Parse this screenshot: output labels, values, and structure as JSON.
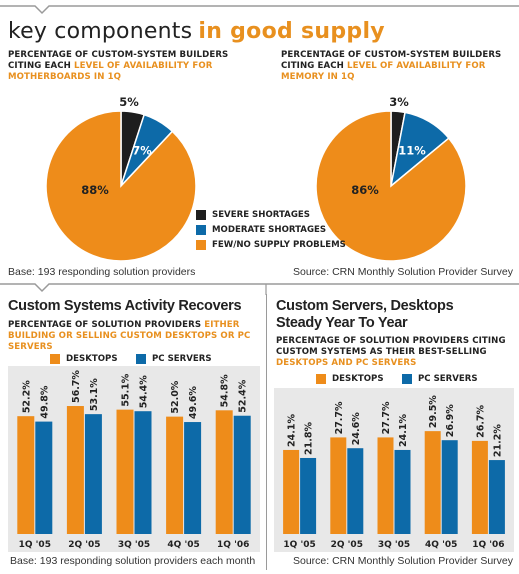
{
  "header": {
    "title_a": "key components",
    "title_b": "in good supply"
  },
  "top_left": {
    "subtitle_a": "PERCENTAGE OF CUSTOM-SYSTEM BUILDERS CITING EACH",
    "subtitle_b": "LEVEL OF AVAILABILITY FOR MOTHERBOARDS IN 1Q"
  },
  "top_right": {
    "subtitle_a": "PERCENTAGE OF CUSTOM-SYSTEM BUILDERS CITING EACH",
    "subtitle_b": "LEVEL OF AVAILABILITY FOR MEMORY IN 1Q"
  },
  "pie_legend": [
    "SEVERE SHORTAGES",
    "MODERATE SHORTAGES",
    "FEW/NO SUPPLY PROBLEMS"
  ],
  "top_base": "Base: 193 responding solution providers",
  "top_source": "Source: CRN Monthly Solution Provider Survey",
  "bottom_left": {
    "title": "Custom Systems Activity Recovers",
    "subtitle_a": "PERCENTAGE OF SOLUTION PROVIDERS",
    "subtitle_b": "EITHER BUILDING OR SELLING CUSTOM DESKTOPS OR PC SERVERS",
    "base": "Base: 193 responding solution providers each month"
  },
  "bottom_right": {
    "title_1": "Custom Servers, Desktops",
    "title_2": "Steady Year To Year",
    "subtitle_a": "PERCENTAGE OF SOLUTION PROVIDERS CITING CUSTOM SYSTEMS AS THEIR BEST-SELLING",
    "subtitle_b": "DESKTOPS AND PC SERVERS",
    "source": "Source: CRN Monthly Solution Provider Survey"
  },
  "bar_legend": [
    "DESKTOPS",
    "PC SERVERS"
  ],
  "colors": {
    "orange": "#ee8c1a",
    "blue": "#0d6aa8",
    "black": "#1e1e1e",
    "panel": "#e8e8e8"
  },
  "chart_data": [
    {
      "type": "pie",
      "categories": [
        "SEVERE SHORTAGES",
        "MODERATE SHORTAGES",
        "FEW/NO SUPPLY PROBLEMS"
      ],
      "values": [
        5,
        7,
        88
      ],
      "labels": [
        "5%",
        "7%",
        "88%"
      ]
    },
    {
      "type": "pie",
      "categories": [
        "SEVERE SHORTAGES",
        "MODERATE SHORTAGES",
        "FEW/NO SUPPLY PROBLEMS"
      ],
      "values": [
        3,
        11,
        86
      ],
      "labels": [
        "3%",
        "11%",
        "86%"
      ]
    },
    {
      "type": "bar",
      "title": "Custom Systems Activity Recovers",
      "categories": [
        "1Q '05",
        "2Q '05",
        "3Q '05",
        "4Q '05",
        "1Q '06"
      ],
      "series": [
        {
          "name": "DESKTOPS",
          "values": [
            52.2,
            56.7,
            55.1,
            52.0,
            54.8
          ],
          "labels": [
            "52.2%",
            "56.7%",
            "55.1%",
            "52.0%",
            "54.8%"
          ]
        },
        {
          "name": "PC SERVERS",
          "values": [
            49.8,
            53.1,
            54.4,
            49.6,
            52.4
          ],
          "labels": [
            "49.8%",
            "53.1%",
            "54.4%",
            "49.6%",
            "52.4%"
          ]
        }
      ],
      "ylim": [
        0,
        70
      ]
    },
    {
      "type": "bar",
      "title": "Custom Servers, Desktops Steady Year To Year",
      "categories": [
        "1Q '05",
        "2Q '05",
        "3Q '05",
        "4Q '05",
        "1Q '06"
      ],
      "series": [
        {
          "name": "DESKTOPS",
          "values": [
            24.1,
            27.7,
            27.7,
            29.5,
            26.7
          ],
          "labels": [
            "24.1%",
            "27.7%",
            "27.7%",
            "29.5%",
            "26.7%"
          ]
        },
        {
          "name": "PC SERVERS",
          "values": [
            21.8,
            24.6,
            24.1,
            26.9,
            21.2
          ],
          "labels": [
            "21.8%",
            "24.6%",
            "24.1%",
            "26.9%",
            "21.2%"
          ]
        }
      ],
      "ylim": [
        0,
        39
      ]
    }
  ]
}
